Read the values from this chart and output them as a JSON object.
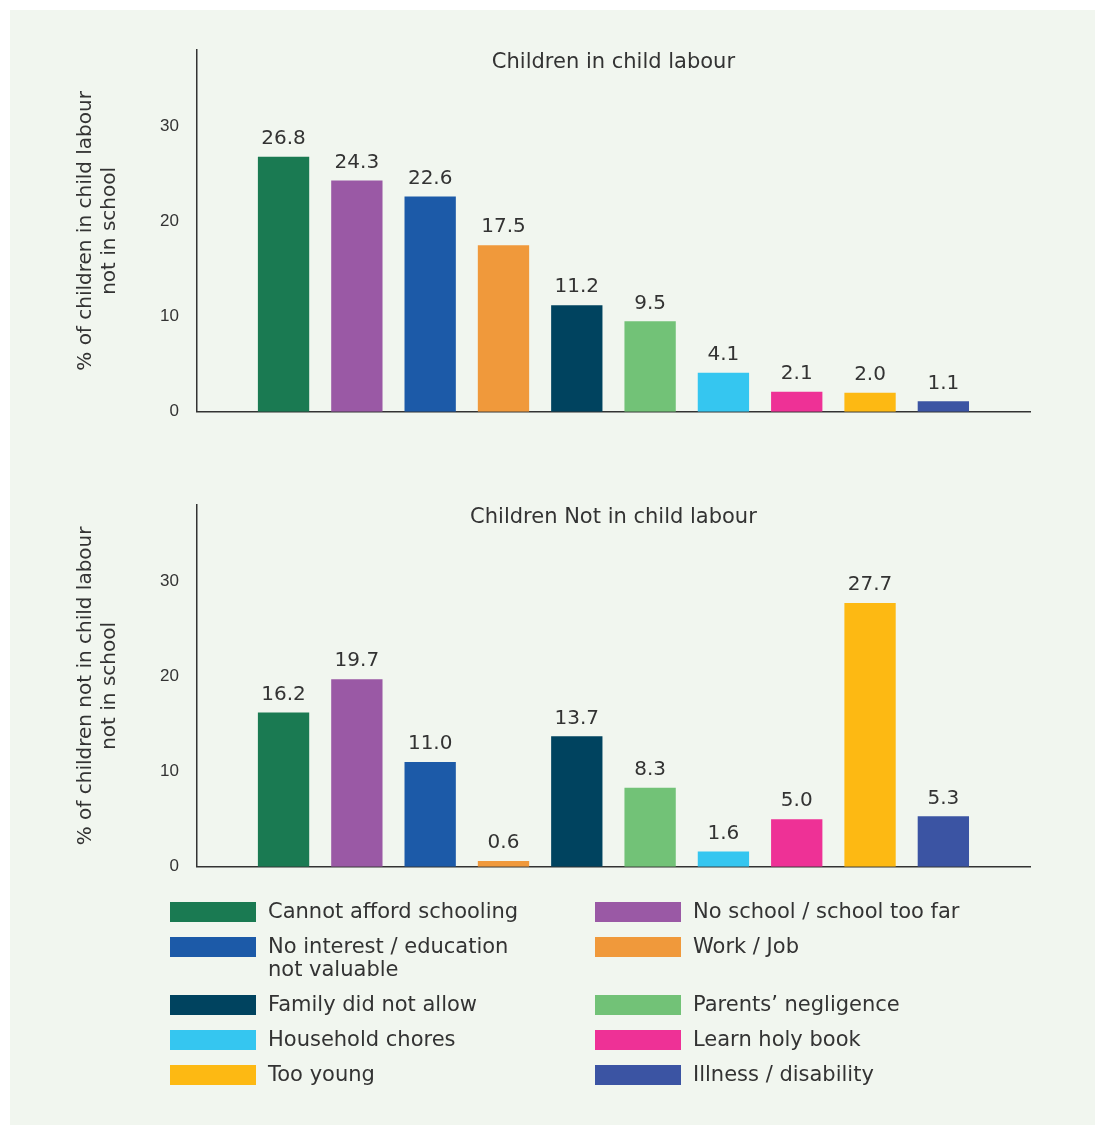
{
  "chart_data": [
    {
      "type": "bar",
      "title": "Children in child labour",
      "ylabel": "% of children in child labour\nnot in school",
      "categories": [
        null
      ],
      "ylim": [
        0,
        38
      ],
      "yticks": [
        0,
        10,
        20,
        30
      ],
      "grid": false,
      "legend": false,
      "series": [
        {
          "color": "#1a7a52",
          "values": [
            26.8
          ],
          "value_labels": [
            "26.8"
          ]
        },
        {
          "color": "#9a59a5",
          "values": [
            24.3
          ],
          "value_labels": [
            "24.3"
          ]
        },
        {
          "color": "#1c5aa8",
          "values": [
            22.6
          ],
          "value_labels": [
            "22.6"
          ]
        },
        {
          "color": "#f0993b",
          "values": [
            17.5
          ],
          "value_labels": [
            "17.5"
          ]
        },
        {
          "color": "#00435f",
          "values": [
            11.2
          ],
          "value_labels": [
            "11.2"
          ]
        },
        {
          "color": "#72c277",
          "values": [
            9.5
          ],
          "value_labels": [
            "9.5"
          ]
        },
        {
          "color": "#35c6f0",
          "values": [
            4.1
          ],
          "value_labels": [
            "4.1"
          ]
        },
        {
          "color": "#ee3196",
          "values": [
            2.1
          ],
          "value_labels": [
            "2.1"
          ]
        },
        {
          "color": "#fdb913",
          "values": [
            2.0
          ],
          "value_labels": [
            "2.0"
          ]
        },
        {
          "color": "#3b54a3",
          "values": [
            1.1
          ],
          "value_labels": [
            "1.1"
          ]
        }
      ]
    },
    {
      "type": "bar",
      "title": "Children Not in child labour",
      "ylabel": "% of children not in child labour\nnot in school",
      "categories": [
        null
      ],
      "ylim": [
        0,
        38
      ],
      "yticks": [
        0,
        10,
        20,
        30
      ],
      "grid": false,
      "legend": "bottom",
      "series": [
        {
          "name": "Cannot afford schooling",
          "color": "#1a7a52",
          "values": [
            16.2
          ],
          "value_labels": [
            "16.2"
          ]
        },
        {
          "name": "No school / school too far",
          "color": "#9a59a5",
          "values": [
            19.7
          ],
          "value_labels": [
            "19.7"
          ]
        },
        {
          "name": "No interest / education not valuable",
          "color": "#1c5aa8",
          "values": [
            11.0
          ],
          "value_labels": [
            "11.0"
          ]
        },
        {
          "name": "Work / Job",
          "color": "#f0993b",
          "values": [
            0.6
          ],
          "value_labels": [
            "0.6"
          ]
        },
        {
          "name": "Family did not allow",
          "color": "#00435f",
          "values": [
            13.7
          ],
          "value_labels": [
            "13.7"
          ]
        },
        {
          "name": "Parents’ negligence",
          "color": "#72c277",
          "values": [
            8.3
          ],
          "value_labels": [
            "8.3"
          ]
        },
        {
          "name": "Household chores",
          "color": "#35c6f0",
          "values": [
            1.6
          ],
          "value_labels": [
            "1.6"
          ]
        },
        {
          "name": "Learn holy book",
          "color": "#ee3196",
          "values": [
            5.0
          ],
          "value_labels": [
            "5.0"
          ]
        },
        {
          "name": "Too young",
          "color": "#fdb913",
          "values": [
            27.7
          ],
          "value_labels": [
            "27.7"
          ]
        },
        {
          "name": "Illness / disability",
          "color": "#3b54a3",
          "values": [
            5.3
          ],
          "value_labels": [
            "5.3"
          ]
        }
      ]
    }
  ]
}
